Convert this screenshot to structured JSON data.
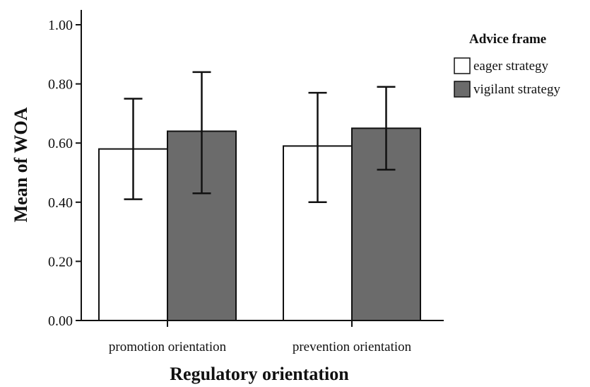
{
  "chart_data": {
    "type": "bar",
    "categories": [
      "promotion orientation",
      "prevention orientation"
    ],
    "series": [
      {
        "name": "eager strategy",
        "values": [
          0.58,
          0.59
        ],
        "error_low": [
          0.41,
          0.4
        ],
        "error_high": [
          0.75,
          0.77
        ],
        "color": "#ffffff"
      },
      {
        "name": "vigilant strategy",
        "values": [
          0.64,
          0.65
        ],
        "error_low": [
          0.43,
          0.51
        ],
        "error_high": [
          0.84,
          0.79
        ],
        "color": "#6b6b6b"
      }
    ],
    "ylim": [
      0,
      1.0
    ],
    "yticks": [
      "0.00",
      "0.20",
      "0.40",
      "0.60",
      "0.80",
      "1.00"
    ],
    "xlabel": "Regulatory orientation",
    "ylabel": "Mean of WOA",
    "legend": {
      "title": "Advice frame",
      "position": "right"
    },
    "grid": false
  }
}
